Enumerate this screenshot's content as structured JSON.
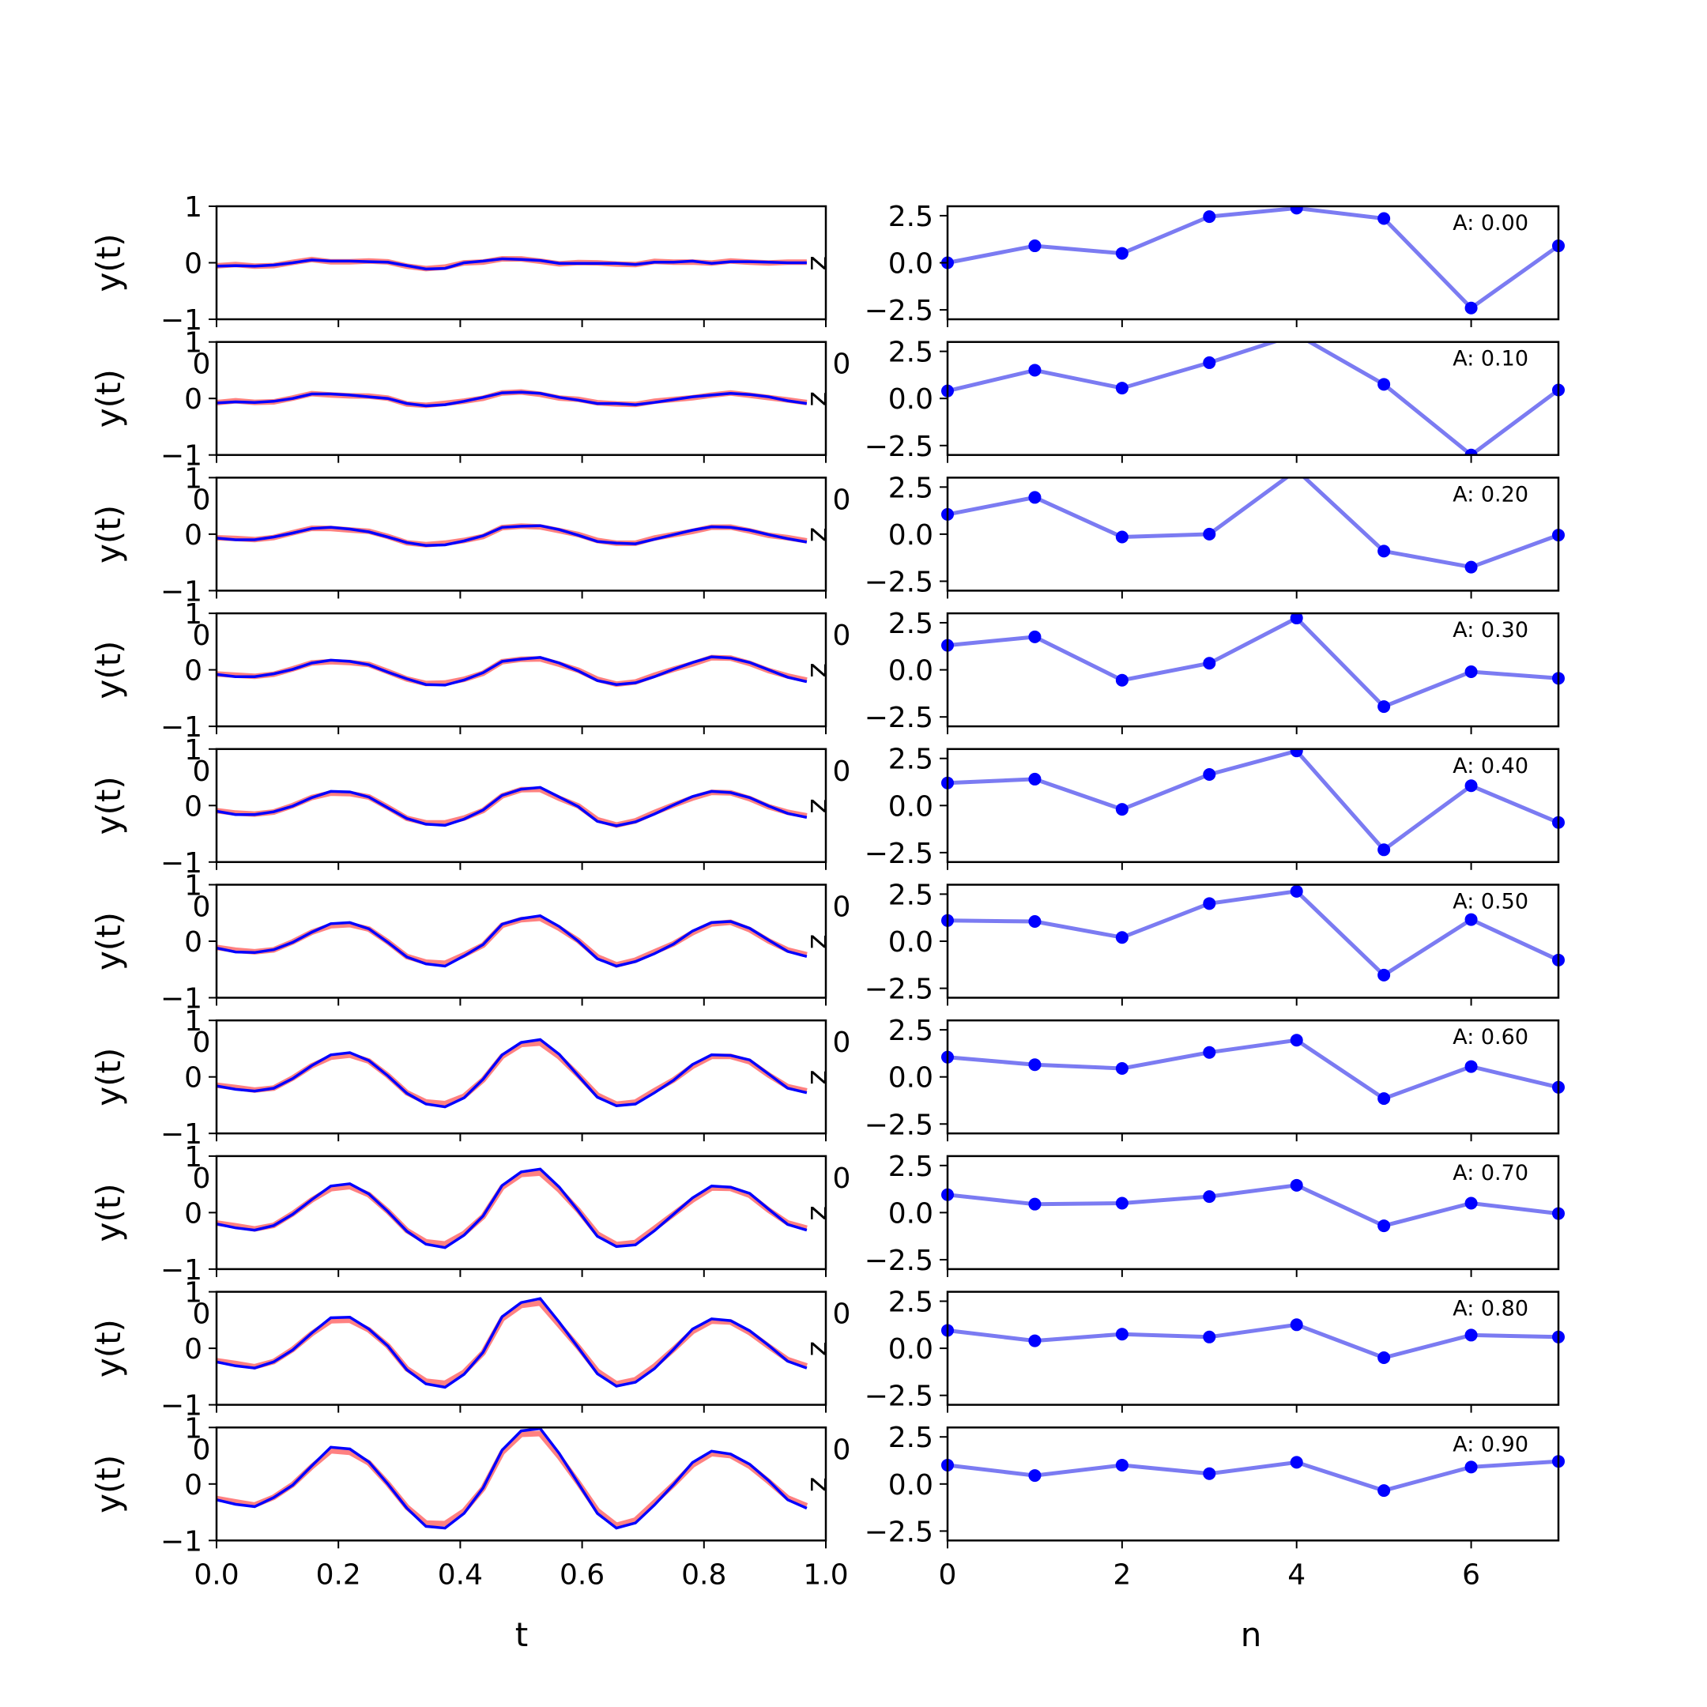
{
  "figure": {
    "left_xlabel": "t",
    "right_xlabel": "n",
    "left_ylabel": "y(t)",
    "left_xticks": [
      "0.0",
      "0.2",
      "0.4",
      "0.6",
      "0.8",
      "1.0"
    ],
    "right_xticks": [
      "0",
      "2",
      "4",
      "6"
    ],
    "left_yticks": [
      "1",
      "0",
      "−1"
    ],
    "right_yticks": [
      "2.5",
      "0.0",
      "−2.5"
    ],
    "overlap_tick_left": "0",
    "overlap_tick_right": "0",
    "overlap_tick_right_partial": "0",
    "panel_marker": "z"
  },
  "chart_data": [
    {
      "type": "line",
      "panel": "left",
      "xlabel": "t",
      "ylabel": "y(t)",
      "xlim": [
        0,
        1
      ],
      "ylim": [
        -1,
        1
      ],
      "grid": false,
      "colors": {
        "red": "#ff6b6b",
        "blue": "#0000ff",
        "points": "#0000ff",
        "right_line": "#7b7bf2"
      },
      "rows": [
        {
          "amplitude_label": "A: 0.00",
          "amplitude": 0.0,
          "blue": [
            -0.06,
            -0.05,
            -0.06,
            -0.04,
            0.0,
            0.05,
            0.03,
            0.03,
            0.02,
            0.01,
            -0.05,
            -0.11,
            -0.1,
            0.0,
            0.03,
            0.07,
            0.06,
            0.04,
            -0.01,
            -0.01,
            -0.01,
            -0.01,
            -0.03,
            0.01,
            0.01,
            0.03,
            -0.01,
            0.02,
            0.02,
            0.01,
            0.0,
            0.0
          ]
        },
        {
          "amplitude_label": "A: 0.10",
          "amplitude": 0.1,
          "blue": [
            -0.08,
            -0.06,
            -0.07,
            -0.05,
            0.0,
            0.08,
            0.08,
            0.06,
            0.03,
            0.0,
            -0.09,
            -0.13,
            -0.11,
            -0.05,
            0.02,
            0.1,
            0.11,
            0.09,
            0.02,
            -0.03,
            -0.09,
            -0.09,
            -0.11,
            -0.07,
            -0.02,
            0.03,
            0.06,
            0.09,
            0.07,
            0.03,
            -0.04,
            -0.09
          ]
        },
        {
          "amplitude_label": "A: 0.20",
          "amplitude": 0.2,
          "blue": [
            -0.07,
            -0.1,
            -0.1,
            -0.05,
            0.02,
            0.1,
            0.12,
            0.09,
            0.04,
            -0.05,
            -0.15,
            -0.2,
            -0.19,
            -0.12,
            -0.03,
            0.12,
            0.14,
            0.15,
            0.08,
            -0.02,
            -0.13,
            -0.16,
            -0.17,
            -0.09,
            -0.01,
            0.07,
            0.13,
            0.12,
            0.07,
            -0.01,
            -0.08,
            -0.14
          ]
        },
        {
          "amplitude_label": "A: 0.30",
          "amplitude": 0.3,
          "blue": [
            -0.08,
            -0.12,
            -0.12,
            -0.07,
            0.01,
            0.12,
            0.17,
            0.15,
            0.09,
            -0.04,
            -0.16,
            -0.26,
            -0.27,
            -0.18,
            -0.05,
            0.15,
            0.19,
            0.22,
            0.12,
            -0.02,
            -0.19,
            -0.26,
            -0.23,
            -0.12,
            0.01,
            0.13,
            0.23,
            0.21,
            0.13,
            0.0,
            -0.13,
            -0.21
          ]
        },
        {
          "amplitude_label": "A: 0.40",
          "amplitude": 0.4,
          "blue": [
            -0.1,
            -0.16,
            -0.16,
            -0.11,
            -0.01,
            0.14,
            0.25,
            0.24,
            0.15,
            -0.04,
            -0.23,
            -0.33,
            -0.35,
            -0.24,
            -0.08,
            0.18,
            0.29,
            0.32,
            0.15,
            -0.02,
            -0.28,
            -0.36,
            -0.29,
            -0.15,
            0.01,
            0.16,
            0.25,
            0.23,
            0.14,
            -0.01,
            -0.14,
            -0.21
          ]
        },
        {
          "amplitude_label": "A: 0.50",
          "amplitude": 0.5,
          "blue": [
            -0.12,
            -0.19,
            -0.2,
            -0.15,
            -0.02,
            0.16,
            0.31,
            0.33,
            0.22,
            -0.02,
            -0.28,
            -0.4,
            -0.44,
            -0.26,
            -0.06,
            0.3,
            0.4,
            0.45,
            0.26,
            0.0,
            -0.31,
            -0.44,
            -0.36,
            -0.22,
            -0.05,
            0.18,
            0.33,
            0.35,
            0.23,
            0.02,
            -0.18,
            -0.27
          ]
        },
        {
          "amplitude_label": "A: 0.60",
          "amplitude": 0.6,
          "blue": [
            -0.16,
            -0.22,
            -0.25,
            -0.2,
            -0.03,
            0.2,
            0.39,
            0.43,
            0.29,
            0.02,
            -0.29,
            -0.48,
            -0.53,
            -0.37,
            -0.04,
            0.39,
            0.61,
            0.66,
            0.4,
            0.02,
            -0.36,
            -0.51,
            -0.48,
            -0.28,
            -0.06,
            0.22,
            0.39,
            0.38,
            0.3,
            0.05,
            -0.2,
            -0.28
          ]
        },
        {
          "amplitude_label": "A: 0.70",
          "amplitude": 0.7,
          "blue": [
            -0.2,
            -0.27,
            -0.31,
            -0.23,
            -0.03,
            0.23,
            0.47,
            0.51,
            0.33,
            0.02,
            -0.33,
            -0.56,
            -0.62,
            -0.4,
            -0.06,
            0.48,
            0.72,
            0.77,
            0.45,
            0.03,
            -0.42,
            -0.6,
            -0.57,
            -0.32,
            -0.03,
            0.26,
            0.47,
            0.45,
            0.34,
            0.06,
            -0.21,
            -0.31
          ]
        },
        {
          "amplitude_label": "A: 0.80",
          "amplitude": 0.8,
          "blue": [
            -0.24,
            -0.31,
            -0.35,
            -0.24,
            -0.03,
            0.27,
            0.54,
            0.55,
            0.34,
            0.04,
            -0.38,
            -0.63,
            -0.69,
            -0.46,
            -0.07,
            0.56,
            0.81,
            0.88,
            0.46,
            0.01,
            -0.45,
            -0.67,
            -0.6,
            -0.36,
            -0.02,
            0.34,
            0.52,
            0.49,
            0.31,
            0.05,
            -0.23,
            -0.35
          ]
        },
        {
          "amplitude_label": "A: 0.90",
          "amplitude": 0.9,
          "blue": [
            -0.28,
            -0.36,
            -0.4,
            -0.24,
            -0.02,
            0.32,
            0.65,
            0.62,
            0.39,
            0.0,
            -0.43,
            -0.75,
            -0.78,
            -0.52,
            -0.07,
            0.6,
            0.94,
            0.98,
            0.54,
            0.01,
            -0.52,
            -0.78,
            -0.69,
            -0.37,
            -0.01,
            0.38,
            0.58,
            0.53,
            0.35,
            0.06,
            -0.28,
            -0.43
          ]
        }
      ]
    },
    {
      "type": "line",
      "panel": "right",
      "xlabel": "n",
      "xlim": [
        0,
        7
      ],
      "ylim": [
        -3,
        3
      ],
      "grid": false,
      "x": [
        0,
        1,
        2,
        3,
        4,
        5,
        6,
        7
      ],
      "rows": [
        {
          "label": "A: 0.00",
          "values": [
            0.0,
            0.9,
            0.5,
            2.45,
            2.9,
            2.35,
            -2.4,
            0.9
          ]
        },
        {
          "label": "A: 0.10",
          "values": [
            0.4,
            1.5,
            0.55,
            1.9,
            3.4,
            0.75,
            -3.0,
            0.45
          ]
        },
        {
          "label": "A: 0.20",
          "values": [
            1.05,
            1.95,
            -0.15,
            0.0,
            3.4,
            -0.9,
            -1.75,
            -0.05
          ]
        },
        {
          "label": "A: 0.30",
          "values": [
            1.3,
            1.75,
            -0.55,
            0.35,
            2.75,
            -1.95,
            -0.1,
            -0.45
          ]
        },
        {
          "label": "A: 0.40",
          "values": [
            1.2,
            1.4,
            -0.2,
            1.65,
            2.9,
            -2.35,
            1.05,
            -0.9
          ]
        },
        {
          "label": "A: 0.50",
          "values": [
            1.1,
            1.05,
            0.2,
            2.0,
            2.65,
            -1.8,
            1.15,
            -1.0
          ]
        },
        {
          "label": "A: 0.60",
          "values": [
            1.05,
            0.65,
            0.45,
            1.3,
            1.95,
            -1.15,
            0.55,
            -0.55
          ]
        },
        {
          "label": "A: 0.70",
          "values": [
            0.95,
            0.45,
            0.5,
            0.85,
            1.45,
            -0.7,
            0.5,
            -0.05
          ]
        },
        {
          "label": "A: 0.80",
          "values": [
            0.95,
            0.4,
            0.75,
            0.6,
            1.25,
            -0.5,
            0.7,
            0.6
          ]
        },
        {
          "label": "A: 0.90",
          "values": [
            1.0,
            0.45,
            1.0,
            0.55,
            1.15,
            -0.35,
            0.9,
            1.2
          ]
        }
      ]
    }
  ]
}
